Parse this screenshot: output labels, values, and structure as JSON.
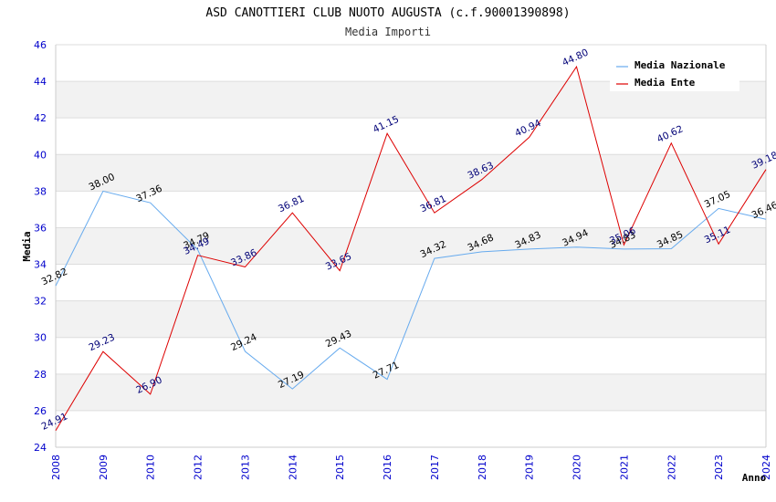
{
  "chart_data": {
    "type": "line",
    "title": "ASD CANOTTIERI CLUB NUOTO AUGUSTA (c.f.90001390898)",
    "subtitle": "Media Importi",
    "xlabel": "Anno",
    "ylabel": "Media",
    "ylim": [
      24,
      46
    ],
    "yticks": [
      24,
      26,
      28,
      30,
      32,
      34,
      36,
      38,
      40,
      42,
      44,
      46
    ],
    "categories": [
      "2008",
      "2009",
      "2010",
      "2012",
      "2013",
      "2014",
      "2015",
      "2016",
      "2017",
      "2018",
      "2019",
      "2020",
      "2021",
      "2022",
      "2023",
      "2024"
    ],
    "grid": true,
    "legend_position": "top-right",
    "series": [
      {
        "name": "Media Nazionale",
        "color": "#66aaee",
        "label_color": "#000000",
        "values": [
          32.82,
          38.0,
          37.36,
          34.79,
          29.24,
          27.19,
          29.43,
          27.71,
          34.32,
          34.68,
          34.83,
          34.94,
          34.83,
          34.85,
          37.05,
          36.46
        ],
        "labels": [
          "32.82",
          "38.00",
          "37.36",
          "34.79",
          "29.24",
          "27.19",
          "29.43",
          "27.71",
          "34.32",
          "34.68",
          "34.83",
          "34.94",
          "34.83",
          "34.85",
          "37.05",
          "36.46"
        ]
      },
      {
        "name": "Media Ente",
        "color": "#dd0000",
        "label_color": "#000077",
        "values": [
          24.91,
          29.23,
          26.9,
          34.49,
          33.86,
          36.81,
          33.65,
          41.15,
          36.81,
          38.63,
          40.94,
          44.8,
          35.06,
          40.62,
          35.11,
          39.18
        ],
        "labels": [
          "24.91",
          "29.23",
          "26.90",
          "34.49",
          "33.86",
          "36.81",
          "33.65",
          "41.15",
          "36.81",
          "38.63",
          "40.94",
          "44.80",
          "35.06",
          "40.62",
          "35.11",
          "39.18"
        ]
      }
    ]
  }
}
